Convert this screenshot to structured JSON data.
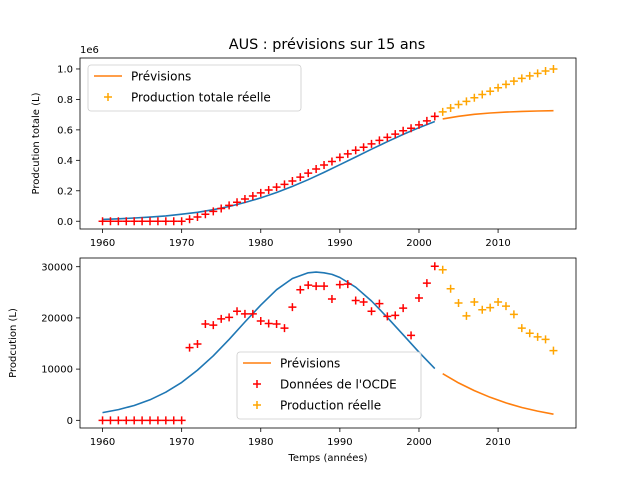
{
  "figure_title": "AUS : prévisions sur 15 ans",
  "colors": {
    "fit": "#1f77b4",
    "forecast": "#ff7f0e",
    "oecd": "#ff0000",
    "actual": "#ffa500"
  },
  "chart_data": [
    {
      "type": "scatter",
      "ylabel": "Prodcution totale (L)",
      "xlabel": "",
      "y_offset_label": "1e6",
      "xlim": [
        1957.15,
        2019.85
      ],
      "ylim": [
        -0.051,
        1.072
      ],
      "x_ticks": [
        1960,
        1970,
        1980,
        1990,
        2000,
        2010
      ],
      "y_ticks": [
        0.0,
        0.2,
        0.4,
        0.6,
        0.8,
        1.0
      ],
      "y_tick_labels": [
        "0.0",
        "0.2",
        "0.4",
        "0.6",
        "0.8",
        "1.0"
      ],
      "legend": {
        "position": "upper left",
        "entries": [
          {
            "label": "Prévisions",
            "kind": "line",
            "color": "#ff7f0e"
          },
          {
            "label": "Production totale réelle",
            "kind": "plus",
            "color": "#ffa500"
          }
        ]
      },
      "series": [
        {
          "kind": "line",
          "color": "#1f77b4",
          "x": [
            1960,
            1962,
            1964,
            1966,
            1968,
            1970,
            1972,
            1974,
            1976,
            1978,
            1980,
            1982,
            1984,
            1986,
            1988,
            1990,
            1992,
            1994,
            1996,
            1998,
            2000,
            2002
          ],
          "values": [
            0.012,
            0.016,
            0.021,
            0.027,
            0.035,
            0.046,
            0.059,
            0.076,
            0.097,
            0.123,
            0.153,
            0.189,
            0.229,
            0.273,
            0.321,
            0.371,
            0.422,
            0.473,
            0.522,
            0.57,
            0.614,
            0.655
          ]
        },
        {
          "kind": "line",
          "color": "#ff7f0e",
          "x": [
            2003,
            2005,
            2007,
            2009,
            2011,
            2013,
            2015,
            2017
          ],
          "values": [
            0.672,
            0.689,
            0.702,
            0.711,
            0.717,
            0.721,
            0.724,
            0.726
          ]
        },
        {
          "kind": "plus",
          "color": "#ff0000",
          "x": [
            1960,
            1961,
            1962,
            1963,
            1964,
            1965,
            1966,
            1967,
            1968,
            1969,
            1970,
            1971,
            1972,
            1973,
            1974,
            1975,
            1976,
            1977,
            1978,
            1979,
            1980,
            1981,
            1982,
            1983,
            1984,
            1985,
            1986,
            1987,
            1988,
            1989,
            1990,
            1991,
            1992,
            1993,
            1994,
            1995,
            1996,
            1997,
            1998,
            1999,
            2000,
            2001,
            2002
          ],
          "values": [
            0,
            0,
            0,
            0,
            0,
            0,
            0,
            0,
            0,
            0,
            0,
            0.013,
            0.028,
            0.046,
            0.065,
            0.084,
            0.104,
            0.125,
            0.146,
            0.166,
            0.186,
            0.205,
            0.224,
            0.242,
            0.264,
            0.29,
            0.316,
            0.343,
            0.369,
            0.392,
            0.419,
            0.442,
            0.466,
            0.486,
            0.508,
            0.531,
            0.551,
            0.572,
            0.594,
            0.611,
            0.633,
            0.659,
            0.689
          ]
        },
        {
          "kind": "plus",
          "color": "#ffa500",
          "x": [
            2003,
            2004,
            2005,
            2006,
            2007,
            2008,
            2009,
            2010,
            2011,
            2012,
            2013,
            2014,
            2015,
            2016,
            2017
          ],
          "values": [
            0.718,
            0.744,
            0.767,
            0.787,
            0.811,
            0.832,
            0.854,
            0.877,
            0.899,
            0.92,
            0.938,
            0.955,
            0.971,
            0.987,
            1.0
          ]
        }
      ]
    },
    {
      "type": "scatter",
      "ylabel": "Prodcution (L)",
      "xlabel": "Temps (années)",
      "xlim": [
        1957.15,
        2019.85
      ],
      "ylim": [
        -1500,
        31700
      ],
      "x_ticks": [
        1960,
        1970,
        1980,
        1990,
        2000,
        2010
      ],
      "y_ticks": [
        0,
        10000,
        20000,
        30000
      ],
      "y_tick_labels": [
        "0",
        "10000",
        "20000",
        "30000"
      ],
      "legend": {
        "position": "lower center",
        "entries": [
          {
            "label": "Prévisions",
            "kind": "line",
            "color": "#ff7f0e"
          },
          {
            "label": "Données de l'OCDE",
            "kind": "plus",
            "color": "#ff0000"
          },
          {
            "label": "Production réelle",
            "kind": "plus",
            "color": "#ffa500"
          }
        ]
      },
      "series": [
        {
          "kind": "line",
          "color": "#1f77b4",
          "x": [
            1960,
            1962,
            1964,
            1966,
            1968,
            1970,
            1972,
            1974,
            1976,
            1978,
            1980,
            1982,
            1984,
            1986,
            1987,
            1988,
            1989,
            1990,
            1992,
            1994,
            1996,
            1998,
            2000,
            2002
          ],
          "values": [
            1500,
            2100,
            2900,
            4000,
            5500,
            7400,
            9800,
            12600,
            15800,
            19200,
            22500,
            25500,
            27700,
            28800,
            28950,
            28800,
            28500,
            27900,
            26000,
            23300,
            20100,
            16700,
            13300,
            10100
          ]
        },
        {
          "kind": "line",
          "color": "#ff7f0e",
          "x": [
            2003,
            2005,
            2007,
            2009,
            2011,
            2013,
            2015,
            2017
          ],
          "values": [
            9100,
            7300,
            5800,
            4500,
            3400,
            2500,
            1800,
            1200
          ]
        },
        {
          "kind": "plus",
          "color": "#ff0000",
          "x": [
            1960,
            1961,
            1962,
            1963,
            1964,
            1965,
            1966,
            1967,
            1968,
            1969,
            1970,
            1971,
            1972,
            1973,
            1974,
            1975,
            1976,
            1977,
            1978,
            1979,
            1980,
            1981,
            1982,
            1983,
            1984,
            1985,
            1986,
            1987,
            1988,
            1989,
            1990,
            1991,
            1992,
            1993,
            1994,
            1995,
            1996,
            1997,
            1998,
            1999,
            2000,
            2001,
            2002
          ],
          "values": [
            0,
            0,
            0,
            0,
            0,
            0,
            0,
            0,
            0,
            0,
            0,
            14200,
            14900,
            18800,
            18600,
            19800,
            20100,
            21300,
            20800,
            20800,
            19400,
            18900,
            18800,
            18000,
            22100,
            25500,
            26400,
            26200,
            26200,
            23700,
            26500,
            26600,
            23400,
            23100,
            21300,
            22800,
            20300,
            20500,
            21900,
            16600,
            23900,
            26800,
            30100
          ]
        },
        {
          "kind": "plus",
          "color": "#ffa500",
          "x": [
            2003,
            2004,
            2005,
            2006,
            2007,
            2008,
            2009,
            2010,
            2011,
            2012,
            2013,
            2014,
            2015,
            2016,
            2017
          ],
          "values": [
            29400,
            25700,
            22900,
            20400,
            23100,
            21600,
            22000,
            23100,
            22300,
            20700,
            18000,
            17000,
            16300,
            15800,
            13600
          ]
        }
      ]
    }
  ]
}
